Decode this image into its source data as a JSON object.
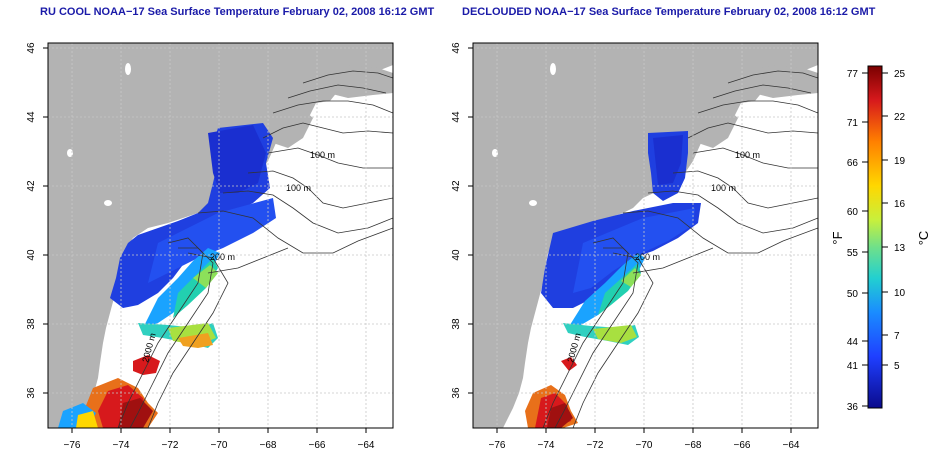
{
  "panels": [
    {
      "title": "RU COOL NOAA−17 Sea Surface Temperature February 02, 2008 16:12 GMT",
      "contour_labels": [
        "100 m",
        "100 m",
        "200 m",
        "2000 m"
      ]
    },
    {
      "title": "DECLOUDED NOAA−17 Sea Surface Temperature February 02, 2008 16:12 GMT",
      "contour_labels": [
        "100 m",
        "100 m",
        "200 m",
        "2000 m"
      ]
    }
  ],
  "axes": {
    "lon_ticks": [
      "−76",
      "−74",
      "−72",
      "−70",
      "−68",
      "−66",
      "−64"
    ],
    "lat_ticks": [
      "46",
      "44",
      "42",
      "40",
      "38",
      "36"
    ]
  },
  "colorbar": {
    "fahrenheit_labels": [
      "77",
      "71",
      "66",
      "60",
      "55",
      "50",
      "44",
      "41",
      "36"
    ],
    "celsius_labels": [
      "25",
      "22",
      "19",
      "16",
      "13",
      "10",
      "7",
      "5"
    ],
    "unit_f": "°F",
    "unit_c": "°C",
    "colors": [
      "#8b0000",
      "#e41a1c",
      "#ff7f00",
      "#ffd700",
      "#d9f03c",
      "#7fe07f",
      "#2fd6c8",
      "#1aa3ff",
      "#1f5fff",
      "#1414d2",
      "#0a0a8c"
    ]
  },
  "map_colors": {
    "land": "#b3b3b3",
    "ocean_no_data": "#ffffff",
    "grid": "#c8c8c8",
    "contour": "#333333"
  }
}
